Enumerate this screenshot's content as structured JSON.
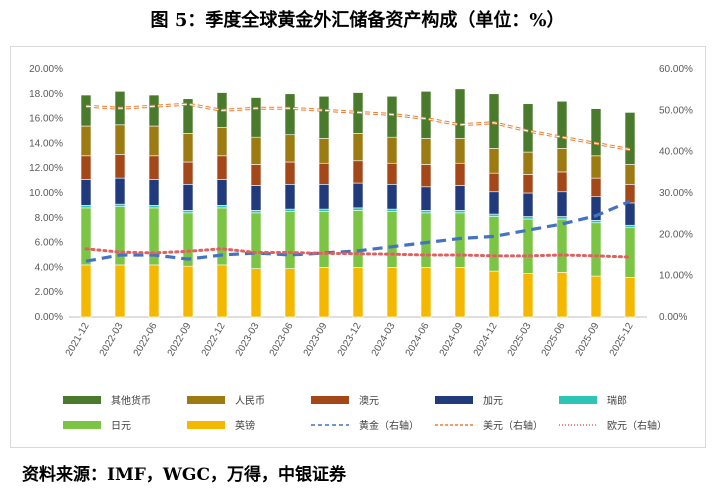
{
  "title": "图 5：季度全球黄金外汇储备资产构成（单位：%）",
  "source": "资料来源：IMF，WGC，万得，中银证券",
  "chart_data": {
    "type": "bar",
    "stacked": true,
    "categories": [
      "2021-12",
      "2022-03",
      "2022-06",
      "2022-09",
      "2022-12",
      "2023-03",
      "2023-06",
      "2023-09",
      "2023-12",
      "2024-03",
      "2024-06",
      "2024-09",
      "2024-12",
      "2025-03",
      "2025-06",
      "2025-09",
      "2025-12"
    ],
    "left_axis": {
      "min": 0,
      "max": 20,
      "step": 2,
      "ticks": [
        "0.00%",
        "2.00%",
        "4.00%",
        "6.00%",
        "8.00%",
        "10.00%",
        "12.00%",
        "14.00%",
        "16.00%",
        "18.00%",
        "20.00%"
      ]
    },
    "right_axis": {
      "min": 0,
      "max": 60,
      "step": 10,
      "ticks": [
        "0.00%",
        "10.00%",
        "20.00%",
        "30.00%",
        "40.00%",
        "50.00%",
        "60.00%"
      ]
    },
    "grid": false,
    "legend_position": "bottom",
    "bar_series": [
      {
        "name": "英镑",
        "color": "#f5b800",
        "values": [
          4.2,
          4.2,
          4.2,
          4.1,
          4.2,
          3.9,
          3.9,
          4.0,
          4.0,
          4.0,
          4.0,
          4.0,
          3.7,
          3.5,
          3.6,
          3.3,
          3.2
        ]
      },
      {
        "name": "日元",
        "color": "#7cc444",
        "values": [
          4.6,
          4.7,
          4.6,
          4.3,
          4.6,
          4.5,
          4.6,
          4.5,
          4.6,
          4.5,
          4.4,
          4.4,
          4.4,
          4.4,
          4.3,
          4.3,
          4.0
        ]
      },
      {
        "name": "瑞郎",
        "color": "#2ec4b6",
        "values": [
          0.2,
          0.2,
          0.2,
          0.2,
          0.2,
          0.2,
          0.2,
          0.2,
          0.2,
          0.2,
          0.2,
          0.2,
          0.2,
          0.2,
          0.2,
          0.2,
          0.2
        ]
      },
      {
        "name": "加元",
        "color": "#203a7c",
        "values": [
          2.1,
          2.1,
          2.1,
          2.1,
          2.1,
          2.0,
          2.0,
          2.0,
          2.0,
          2.0,
          1.9,
          2.0,
          1.8,
          1.9,
          2.0,
          1.9,
          1.8
        ]
      },
      {
        "name": "澳元",
        "color": "#a4481a",
        "values": [
          1.9,
          1.9,
          1.9,
          1.8,
          1.9,
          1.7,
          1.8,
          1.7,
          1.8,
          1.7,
          1.8,
          1.8,
          1.5,
          1.5,
          1.6,
          1.5,
          1.5
        ]
      },
      {
        "name": "人民币",
        "color": "#9c7c12",
        "values": [
          2.4,
          2.4,
          2.4,
          2.3,
          2.3,
          2.2,
          2.2,
          2.0,
          2.2,
          2.1,
          2.1,
          2.0,
          2.0,
          1.8,
          1.9,
          1.8,
          1.6
        ]
      },
      {
        "name": "其他货币",
        "color": "#4a7a2c",
        "values": [
          2.5,
          2.7,
          2.5,
          2.8,
          2.8,
          3.2,
          3.3,
          3.4,
          3.3,
          3.3,
          3.8,
          4.0,
          4.4,
          3.9,
          3.8,
          3.8,
          4.2
        ]
      }
    ],
    "line_series": [
      {
        "name": "黄金（右轴）",
        "color": "#4472c4",
        "style": "dashed",
        "values": [
          13.5,
          15.0,
          15.0,
          14.0,
          15.0,
          15.5,
          15.0,
          15.5,
          16.0,
          17.0,
          18.0,
          19.0,
          19.5,
          21.0,
          22.5,
          24.5,
          28.0
        ]
      },
      {
        "name": "美元（右轴）",
        "color": "#ed7d31",
        "style": "dashed-double",
        "values": [
          51.0,
          50.5,
          51.0,
          51.5,
          50.0,
          50.5,
          50.5,
          50.0,
          49.5,
          49.0,
          48.0,
          46.5,
          47.0,
          45.0,
          43.5,
          42.0,
          40.5
        ]
      },
      {
        "name": "欧元（右轴）",
        "color": "#e06060",
        "style": "dotted",
        "values": [
          16.5,
          15.7,
          15.5,
          15.9,
          16.5,
          15.6,
          15.6,
          15.4,
          15.3,
          15.2,
          15.0,
          15.0,
          14.8,
          14.8,
          15.0,
          14.8,
          14.5
        ]
      }
    ],
    "legend": [
      "其他货币",
      "人民币",
      "澳元",
      "加元",
      "瑞郎",
      "日元",
      "英镑",
      "黄金（右轴）",
      "美元（右轴）",
      "欧元（右轴）"
    ]
  }
}
